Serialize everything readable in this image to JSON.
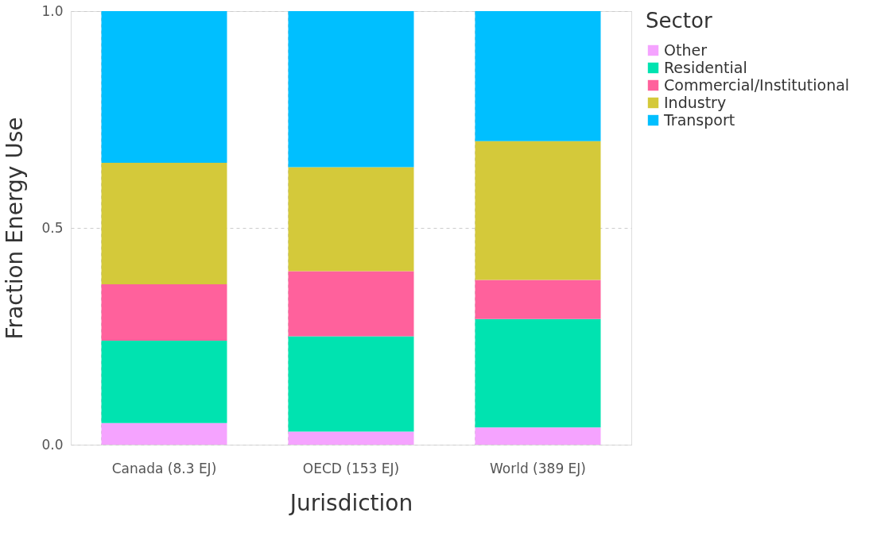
{
  "chart_data": {
    "type": "bar",
    "stacked": true,
    "xlabel": "Jurisdiction",
    "ylabel": "Fraction Energy Use",
    "legend_title": "Sector",
    "legend": "right",
    "grid": true,
    "categories": [
      "Canada (8.3 EJ)",
      "OECD (153 EJ)",
      "World (389 EJ)"
    ],
    "ylim": [
      0,
      1
    ],
    "yticks": [
      {
        "value": 0,
        "label": "0.0"
      },
      {
        "value": 0.5,
        "label": "0.5"
      },
      {
        "value": 1,
        "label": "1.0"
      }
    ],
    "series": [
      {
        "name": "Other",
        "color": "#f5a3ff",
        "values": [
          0.05,
          0.03,
          0.04
        ]
      },
      {
        "name": "Residential",
        "color": "#00e3b0",
        "values": [
          0.19,
          0.22,
          0.25
        ]
      },
      {
        "name": "Commercial/Institutional",
        "color": "#ff619c",
        "values": [
          0.13,
          0.15,
          0.09
        ]
      },
      {
        "name": "Industry",
        "color": "#d4c93a",
        "values": [
          0.28,
          0.24,
          0.32
        ]
      },
      {
        "name": "Transport",
        "color": "#00bfff",
        "values": [
          0.35,
          0.36,
          0.3
        ]
      }
    ]
  }
}
